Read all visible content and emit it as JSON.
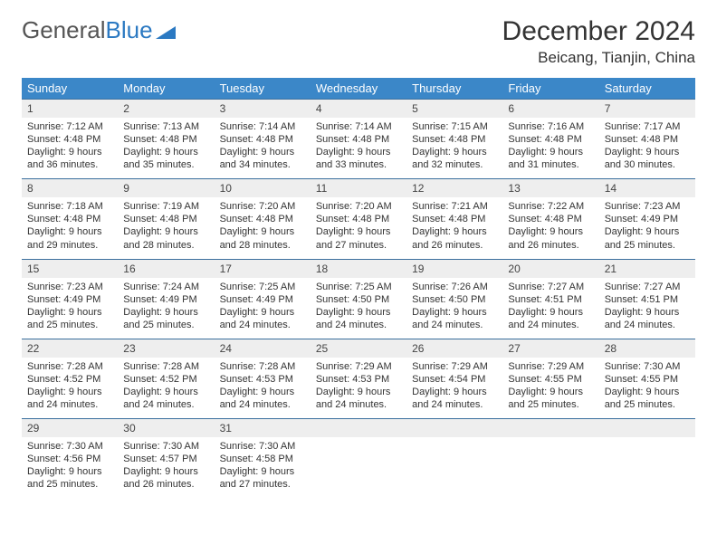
{
  "branding": {
    "logo_gray": "General",
    "logo_blue": "Blue"
  },
  "header": {
    "month_title": "December 2024",
    "location": "Beicang, Tianjin, China"
  },
  "colors": {
    "header_bg": "#3b87c8",
    "header_text": "#ffffff",
    "daynum_bg": "#eeeeee",
    "rule": "#3b6f9e",
    "text": "#333333",
    "logo_gray": "#555555",
    "logo_blue": "#2b79c2",
    "background": "#ffffff"
  },
  "fonts": {
    "title_pt": 30,
    "location_pt": 17,
    "header_pt": 13,
    "daynum_pt": 12,
    "detail_pt": 11
  },
  "calendar": {
    "type": "table",
    "columns": [
      "Sunday",
      "Monday",
      "Tuesday",
      "Wednesday",
      "Thursday",
      "Friday",
      "Saturday"
    ],
    "weeks": [
      [
        {
          "n": "1",
          "sr": "Sunrise: 7:12 AM",
          "ss": "Sunset: 4:48 PM",
          "d1": "Daylight: 9 hours",
          "d2": "and 36 minutes."
        },
        {
          "n": "2",
          "sr": "Sunrise: 7:13 AM",
          "ss": "Sunset: 4:48 PM",
          "d1": "Daylight: 9 hours",
          "d2": "and 35 minutes."
        },
        {
          "n": "3",
          "sr": "Sunrise: 7:14 AM",
          "ss": "Sunset: 4:48 PM",
          "d1": "Daylight: 9 hours",
          "d2": "and 34 minutes."
        },
        {
          "n": "4",
          "sr": "Sunrise: 7:14 AM",
          "ss": "Sunset: 4:48 PM",
          "d1": "Daylight: 9 hours",
          "d2": "and 33 minutes."
        },
        {
          "n": "5",
          "sr": "Sunrise: 7:15 AM",
          "ss": "Sunset: 4:48 PM",
          "d1": "Daylight: 9 hours",
          "d2": "and 32 minutes."
        },
        {
          "n": "6",
          "sr": "Sunrise: 7:16 AM",
          "ss": "Sunset: 4:48 PM",
          "d1": "Daylight: 9 hours",
          "d2": "and 31 minutes."
        },
        {
          "n": "7",
          "sr": "Sunrise: 7:17 AM",
          "ss": "Sunset: 4:48 PM",
          "d1": "Daylight: 9 hours",
          "d2": "and 30 minutes."
        }
      ],
      [
        {
          "n": "8",
          "sr": "Sunrise: 7:18 AM",
          "ss": "Sunset: 4:48 PM",
          "d1": "Daylight: 9 hours",
          "d2": "and 29 minutes."
        },
        {
          "n": "9",
          "sr": "Sunrise: 7:19 AM",
          "ss": "Sunset: 4:48 PM",
          "d1": "Daylight: 9 hours",
          "d2": "and 28 minutes."
        },
        {
          "n": "10",
          "sr": "Sunrise: 7:20 AM",
          "ss": "Sunset: 4:48 PM",
          "d1": "Daylight: 9 hours",
          "d2": "and 28 minutes."
        },
        {
          "n": "11",
          "sr": "Sunrise: 7:20 AM",
          "ss": "Sunset: 4:48 PM",
          "d1": "Daylight: 9 hours",
          "d2": "and 27 minutes."
        },
        {
          "n": "12",
          "sr": "Sunrise: 7:21 AM",
          "ss": "Sunset: 4:48 PM",
          "d1": "Daylight: 9 hours",
          "d2": "and 26 minutes."
        },
        {
          "n": "13",
          "sr": "Sunrise: 7:22 AM",
          "ss": "Sunset: 4:48 PM",
          "d1": "Daylight: 9 hours",
          "d2": "and 26 minutes."
        },
        {
          "n": "14",
          "sr": "Sunrise: 7:23 AM",
          "ss": "Sunset: 4:49 PM",
          "d1": "Daylight: 9 hours",
          "d2": "and 25 minutes."
        }
      ],
      [
        {
          "n": "15",
          "sr": "Sunrise: 7:23 AM",
          "ss": "Sunset: 4:49 PM",
          "d1": "Daylight: 9 hours",
          "d2": "and 25 minutes."
        },
        {
          "n": "16",
          "sr": "Sunrise: 7:24 AM",
          "ss": "Sunset: 4:49 PM",
          "d1": "Daylight: 9 hours",
          "d2": "and 25 minutes."
        },
        {
          "n": "17",
          "sr": "Sunrise: 7:25 AM",
          "ss": "Sunset: 4:49 PM",
          "d1": "Daylight: 9 hours",
          "d2": "and 24 minutes."
        },
        {
          "n": "18",
          "sr": "Sunrise: 7:25 AM",
          "ss": "Sunset: 4:50 PM",
          "d1": "Daylight: 9 hours",
          "d2": "and 24 minutes."
        },
        {
          "n": "19",
          "sr": "Sunrise: 7:26 AM",
          "ss": "Sunset: 4:50 PM",
          "d1": "Daylight: 9 hours",
          "d2": "and 24 minutes."
        },
        {
          "n": "20",
          "sr": "Sunrise: 7:27 AM",
          "ss": "Sunset: 4:51 PM",
          "d1": "Daylight: 9 hours",
          "d2": "and 24 minutes."
        },
        {
          "n": "21",
          "sr": "Sunrise: 7:27 AM",
          "ss": "Sunset: 4:51 PM",
          "d1": "Daylight: 9 hours",
          "d2": "and 24 minutes."
        }
      ],
      [
        {
          "n": "22",
          "sr": "Sunrise: 7:28 AM",
          "ss": "Sunset: 4:52 PM",
          "d1": "Daylight: 9 hours",
          "d2": "and 24 minutes."
        },
        {
          "n": "23",
          "sr": "Sunrise: 7:28 AM",
          "ss": "Sunset: 4:52 PM",
          "d1": "Daylight: 9 hours",
          "d2": "and 24 minutes."
        },
        {
          "n": "24",
          "sr": "Sunrise: 7:28 AM",
          "ss": "Sunset: 4:53 PM",
          "d1": "Daylight: 9 hours",
          "d2": "and 24 minutes."
        },
        {
          "n": "25",
          "sr": "Sunrise: 7:29 AM",
          "ss": "Sunset: 4:53 PM",
          "d1": "Daylight: 9 hours",
          "d2": "and 24 minutes."
        },
        {
          "n": "26",
          "sr": "Sunrise: 7:29 AM",
          "ss": "Sunset: 4:54 PM",
          "d1": "Daylight: 9 hours",
          "d2": "and 24 minutes."
        },
        {
          "n": "27",
          "sr": "Sunrise: 7:29 AM",
          "ss": "Sunset: 4:55 PM",
          "d1": "Daylight: 9 hours",
          "d2": "and 25 minutes."
        },
        {
          "n": "28",
          "sr": "Sunrise: 7:30 AM",
          "ss": "Sunset: 4:55 PM",
          "d1": "Daylight: 9 hours",
          "d2": "and 25 minutes."
        }
      ],
      [
        {
          "n": "29",
          "sr": "Sunrise: 7:30 AM",
          "ss": "Sunset: 4:56 PM",
          "d1": "Daylight: 9 hours",
          "d2": "and 25 minutes."
        },
        {
          "n": "30",
          "sr": "Sunrise: 7:30 AM",
          "ss": "Sunset: 4:57 PM",
          "d1": "Daylight: 9 hours",
          "d2": "and 26 minutes."
        },
        {
          "n": "31",
          "sr": "Sunrise: 7:30 AM",
          "ss": "Sunset: 4:58 PM",
          "d1": "Daylight: 9 hours",
          "d2": "and 27 minutes."
        },
        {
          "n": "",
          "sr": "",
          "ss": "",
          "d1": "",
          "d2": ""
        },
        {
          "n": "",
          "sr": "",
          "ss": "",
          "d1": "",
          "d2": ""
        },
        {
          "n": "",
          "sr": "",
          "ss": "",
          "d1": "",
          "d2": ""
        },
        {
          "n": "",
          "sr": "",
          "ss": "",
          "d1": "",
          "d2": ""
        }
      ]
    ]
  }
}
